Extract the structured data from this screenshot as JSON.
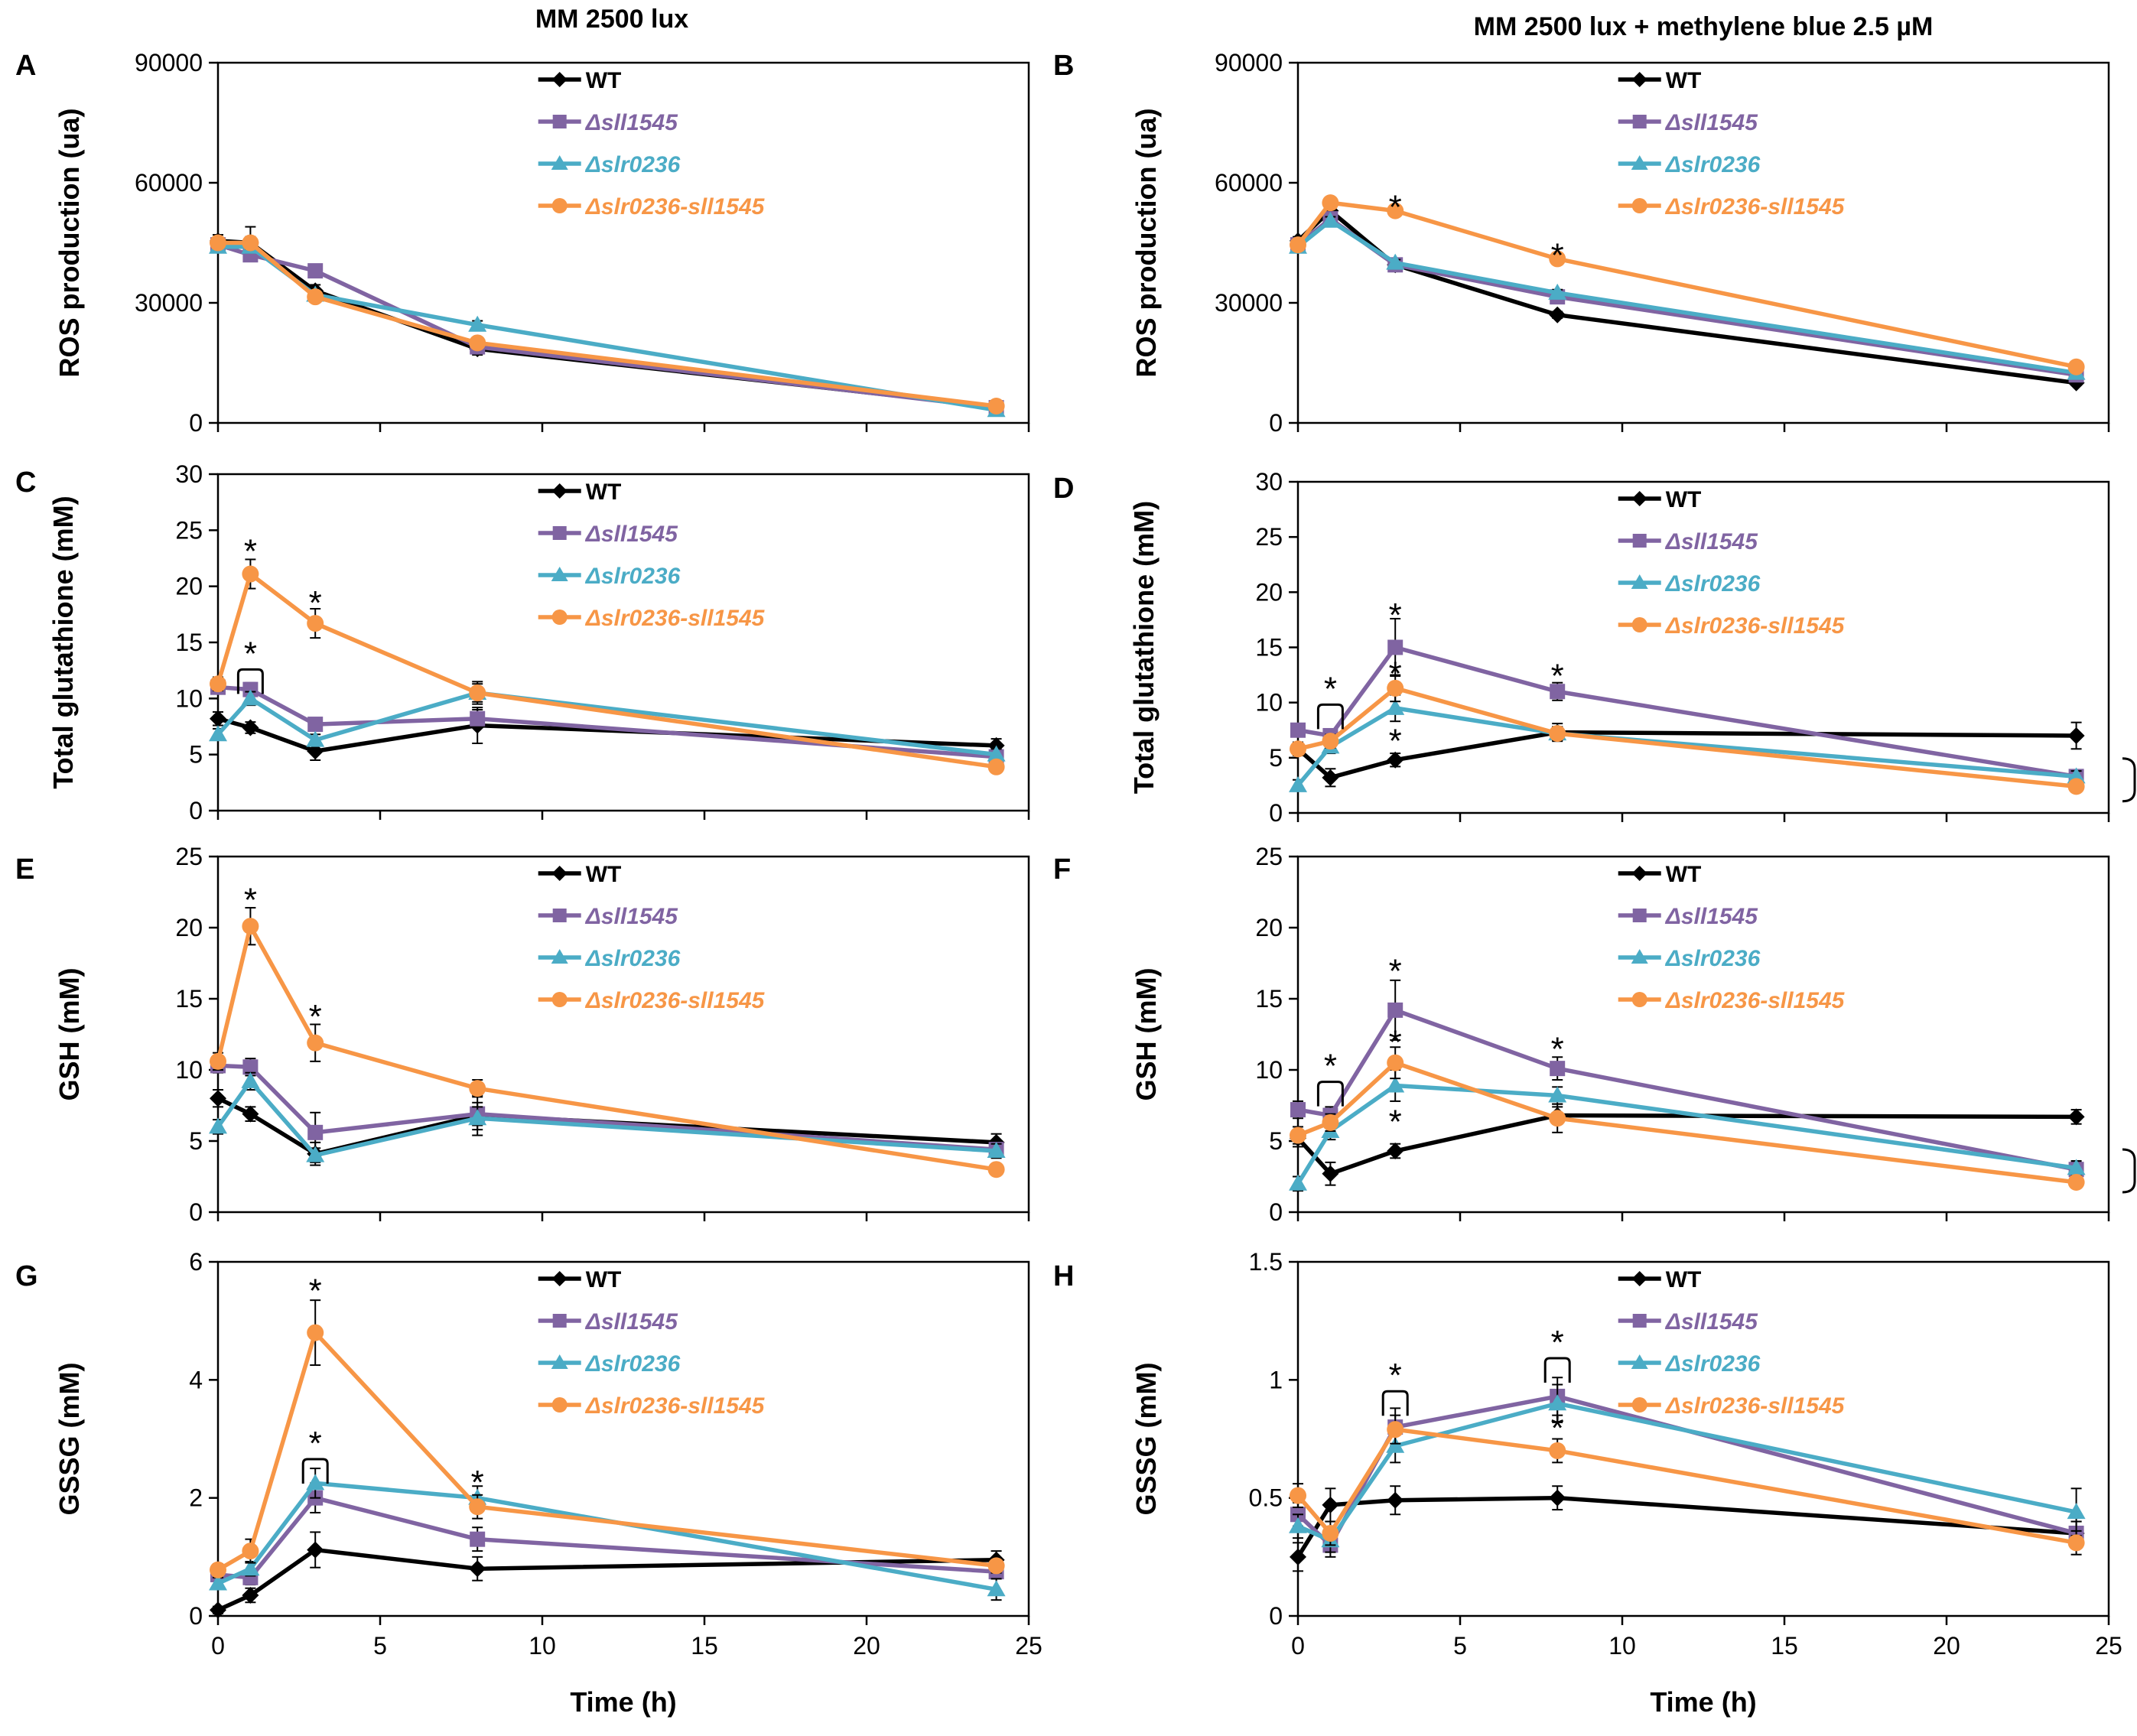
{
  "figure": {
    "col_titles": [
      "MM 2500 lux",
      "MM 2500 lux + methylene blue 2.5 µM"
    ],
    "xlabel": "Time (h)"
  },
  "chart_data": [
    {
      "type": "line",
      "panel": "A",
      "title": "",
      "xlabel": "",
      "ylabel": "ROS production (ua)",
      "xlim": [
        0,
        25
      ],
      "ylim": [
        0,
        90000
      ],
      "yticks": [
        "0",
        "30000",
        "60000",
        "90000"
      ],
      "xticks": [
        0,
        5,
        10,
        15,
        20,
        25
      ],
      "series": [
        {
          "name": "WT",
          "x": [
            0,
            1,
            3,
            8,
            24
          ],
          "values": [
            45500,
            45000,
            33000,
            18500,
            4000
          ],
          "err": [
            1500,
            4000,
            1500,
            1500,
            500
          ]
        },
        {
          "name": "Δsll1545",
          "x": [
            0,
            1,
            3,
            8,
            24
          ],
          "values": [
            44500,
            42000,
            38000,
            19000,
            3800
          ],
          "err": [
            1000,
            1500,
            1000,
            1000,
            500
          ]
        },
        {
          "name": "Δslr0236",
          "x": [
            0,
            1,
            3,
            8,
            24
          ],
          "values": [
            44000,
            44000,
            32000,
            24500,
            3200
          ],
          "err": [
            1000,
            1500,
            1000,
            1000,
            500
          ]
        },
        {
          "name": "Δslr0236-sll1545",
          "x": [
            0,
            1,
            3,
            8,
            24
          ],
          "values": [
            45000,
            45000,
            31500,
            20000,
            4200
          ],
          "err": [
            1000,
            1500,
            1000,
            1000,
            500
          ]
        }
      ],
      "annotations": []
    },
    {
      "type": "line",
      "panel": "B",
      "title": "",
      "xlabel": "",
      "ylabel": "ROS production (ua)",
      "xlim": [
        0,
        25
      ],
      "ylim": [
        0,
        90000
      ],
      "yticks": [
        "0",
        "30000",
        "60000",
        "90000"
      ],
      "xticks": [
        0,
        5,
        10,
        15,
        20,
        25
      ],
      "series": [
        {
          "name": "WT",
          "x": [
            0,
            1,
            3,
            8,
            24
          ],
          "values": [
            45500,
            53000,
            39500,
            27000,
            10000
          ],
          "err": [
            1000,
            1000,
            800,
            800,
            600
          ]
        },
        {
          "name": "Δsll1545",
          "x": [
            0,
            1,
            3,
            8,
            24
          ],
          "values": [
            44500,
            51000,
            39500,
            31500,
            12000
          ],
          "err": [
            1000,
            1000,
            800,
            800,
            600
          ]
        },
        {
          "name": "Δslr0236",
          "x": [
            0,
            1,
            3,
            8,
            24
          ],
          "values": [
            44000,
            50500,
            40000,
            32500,
            12500
          ],
          "err": [
            1000,
            1000,
            800,
            800,
            600
          ]
        },
        {
          "name": "Δslr0236-sll1545",
          "x": [
            0,
            1,
            3,
            8,
            24
          ],
          "values": [
            44500,
            55000,
            53000,
            41000,
            14000
          ],
          "err": [
            1000,
            1000,
            800,
            800,
            600
          ]
        }
      ],
      "annotations": [
        {
          "text": "*",
          "x": 3,
          "y": 53000
        },
        {
          "text": "*",
          "x": 8,
          "y": 41000
        }
      ]
    },
    {
      "type": "line",
      "panel": "C",
      "title": "",
      "xlabel": "",
      "ylabel": "Total glutathione (mM)",
      "xlim": [
        0,
        25
      ],
      "ylim": [
        0,
        30
      ],
      "yticks": [
        "0",
        "5",
        "10",
        "15",
        "20",
        "25",
        "30"
      ],
      "xticks": [
        0,
        5,
        10,
        15,
        20,
        25
      ],
      "series": [
        {
          "name": "WT",
          "x": [
            0,
            1,
            3,
            8,
            24
          ],
          "values": [
            8.2,
            7.4,
            5.3,
            7.6,
            5.8
          ],
          "err": [
            0.6,
            0.5,
            0.8,
            1.6,
            0.6
          ]
        },
        {
          "name": "Δsll1545",
          "x": [
            0,
            1,
            3,
            8,
            24
          ],
          "values": [
            11.0,
            10.8,
            7.7,
            8.2,
            4.8
          ],
          "err": [
            0.5,
            0.6,
            0.5,
            0.8,
            0.5
          ]
        },
        {
          "name": "Δslr0236",
          "x": [
            0,
            1,
            3,
            8,
            24
          ],
          "values": [
            6.8,
            10.0,
            6.3,
            10.5,
            5.0
          ],
          "err": [
            0.5,
            0.6,
            0.5,
            1.0,
            0.5
          ]
        },
        {
          "name": "Δslr0236-sll1545",
          "x": [
            0,
            1,
            3,
            8,
            24
          ],
          "values": [
            11.3,
            21.1,
            16.7,
            10.5,
            3.9
          ],
          "err": [
            0.6,
            1.3,
            1.3,
            0.8,
            0.5
          ]
        }
      ],
      "annotations": [
        {
          "text": "*",
          "x": 1,
          "y": 22.8
        },
        {
          "text": "*",
          "x": 3,
          "y": 18.2
        },
        {
          "text": "*",
          "x": 1,
          "y": 11.5,
          "bracket": true
        }
      ]
    },
    {
      "type": "line",
      "panel": "D",
      "title": "",
      "xlabel": "",
      "ylabel": "Total glutathione (mM)",
      "xlim": [
        0,
        25
      ],
      "ylim": [
        0,
        30
      ],
      "yticks": [
        "0",
        "5",
        "10",
        "15",
        "20",
        "25",
        "30"
      ],
      "xticks": [
        0,
        5,
        10,
        15,
        20,
        25
      ],
      "series": [
        {
          "name": "WT",
          "x": [
            0,
            1,
            3,
            8,
            24
          ],
          "values": [
            5.8,
            3.2,
            4.8,
            7.3,
            7.0
          ],
          "err": [
            0.6,
            0.8,
            0.6,
            0.8,
            1.2
          ]
        },
        {
          "name": "Δsll1545",
          "x": [
            0,
            1,
            3,
            8,
            24
          ],
          "values": [
            7.5,
            7.0,
            15.0,
            11.0,
            3.3
          ],
          "err": [
            0.6,
            0.6,
            2.6,
            0.8,
            0.5
          ]
        },
        {
          "name": "Δslr0236",
          "x": [
            0,
            1,
            3,
            8,
            24
          ],
          "values": [
            2.5,
            6.0,
            9.5,
            7.2,
            3.3
          ],
          "err": [
            0.5,
            0.6,
            1.2,
            0.6,
            0.5
          ]
        },
        {
          "name": "Δslr0236-sll1545",
          "x": [
            0,
            1,
            3,
            8,
            24
          ],
          "values": [
            5.8,
            6.5,
            11.3,
            7.2,
            2.4
          ],
          "err": [
            0.6,
            0.6,
            1.2,
            0.6,
            0.5
          ]
        }
      ],
      "annotations": [
        {
          "text": "*",
          "x": 1,
          "y": 8.7,
          "bracket": true
        },
        {
          "text": "*",
          "x": 3,
          "y": 17.6
        },
        {
          "text": "*",
          "x": 3,
          "y": 12.3
        },
        {
          "text": "*",
          "x": 3,
          "y": 6.2
        },
        {
          "text": "*",
          "x": 8,
          "y": 12.1
        },
        {
          "text": "*",
          "x": 24,
          "y": 3.0,
          "right_bracket": true
        }
      ]
    },
    {
      "type": "line",
      "panel": "E",
      "title": "",
      "xlabel": "",
      "ylabel": "GSH (mM)",
      "xlim": [
        0,
        25
      ],
      "ylim": [
        0,
        25
      ],
      "yticks": [
        "0",
        "5",
        "10",
        "15",
        "20",
        "25"
      ],
      "xticks": [
        0,
        5,
        10,
        15,
        20,
        25
      ],
      "series": [
        {
          "name": "WT",
          "x": [
            0,
            1,
            3,
            8,
            24
          ],
          "values": [
            8.0,
            6.9,
            4.1,
            6.8,
            4.9
          ],
          "err": [
            0.6,
            0.5,
            0.8,
            1.4,
            0.6
          ]
        },
        {
          "name": "Δsll1545",
          "x": [
            0,
            1,
            3,
            8,
            24
          ],
          "values": [
            10.3,
            10.2,
            5.6,
            6.9,
            4.4
          ],
          "err": [
            0.5,
            0.6,
            1.4,
            0.8,
            0.5
          ]
        },
        {
          "name": "Δslr0236",
          "x": [
            0,
            1,
            3,
            8,
            24
          ],
          "values": [
            6.0,
            9.2,
            4.0,
            6.6,
            4.3
          ],
          "err": [
            0.5,
            0.6,
            0.5,
            0.8,
            0.5
          ]
        },
        {
          "name": "Δslr0236-sll1545",
          "x": [
            0,
            1,
            3,
            8,
            24
          ],
          "values": [
            10.6,
            20.1,
            11.9,
            8.7,
            3.0
          ],
          "err": [
            0.6,
            1.3,
            1.3,
            0.6,
            0.3
          ]
        }
      ],
      "annotations": [
        {
          "text": "*",
          "x": 1,
          "y": 21.7
        },
        {
          "text": "*",
          "x": 3,
          "y": 13.5
        }
      ]
    },
    {
      "type": "line",
      "panel": "F",
      "title": "",
      "xlabel": "",
      "ylabel": "GSH (mM)",
      "xlim": [
        0,
        25
      ],
      "ylim": [
        0,
        25
      ],
      "yticks": [
        "0",
        "5",
        "10",
        "15",
        "20",
        "25"
      ],
      "xticks": [
        0,
        5,
        10,
        15,
        20,
        25
      ],
      "series": [
        {
          "name": "WT",
          "x": [
            0,
            1,
            3,
            8,
            24
          ],
          "values": [
            5.2,
            2.7,
            4.3,
            6.8,
            6.7
          ],
          "err": [
            0.6,
            0.8,
            0.5,
            0.6,
            0.5
          ]
        },
        {
          "name": "Δsll1545",
          "x": [
            0,
            1,
            3,
            8,
            24
          ],
          "values": [
            7.2,
            6.8,
            14.2,
            10.1,
            3.0
          ],
          "err": [
            0.6,
            0.6,
            2.1,
            0.8,
            0.5
          ]
        },
        {
          "name": "Δslr0236",
          "x": [
            0,
            1,
            3,
            8,
            24
          ],
          "values": [
            2.0,
            5.7,
            8.9,
            8.2,
            3.1
          ],
          "err": [
            0.5,
            0.6,
            1.1,
            0.6,
            0.5
          ]
        },
        {
          "name": "Δslr0236-sll1545",
          "x": [
            0,
            1,
            3,
            8,
            24
          ],
          "values": [
            5.4,
            6.3,
            10.5,
            6.6,
            2.1
          ],
          "err": [
            0.6,
            0.6,
            1.1,
            1.0,
            0.4
          ]
        }
      ],
      "annotations": [
        {
          "text": "*",
          "x": 1,
          "y": 8.3,
          "bracket": true
        },
        {
          "text": "*",
          "x": 3,
          "y": 16.7
        },
        {
          "text": "*",
          "x": 3,
          "y": 11.7
        },
        {
          "text": "*",
          "x": 3,
          "y": 6.1
        },
        {
          "text": "*",
          "x": 8,
          "y": 11.2
        },
        {
          "text": "*",
          "x": 24,
          "y": 2.9,
          "right_bracket": true
        }
      ]
    },
    {
      "type": "line",
      "panel": "G",
      "title": "",
      "xlabel": "Time (h)",
      "ylabel": "GSSG (mM)",
      "xlim": [
        0,
        25
      ],
      "ylim": [
        0,
        6
      ],
      "yticks": [
        "0",
        "2",
        "4",
        "6"
      ],
      "xticks": [
        0,
        5,
        10,
        15,
        20,
        25
      ],
      "series": [
        {
          "name": "WT",
          "x": [
            0,
            1,
            3,
            8,
            24
          ],
          "values": [
            0.1,
            0.35,
            1.12,
            0.8,
            0.95
          ],
          "err": [
            0.06,
            0.12,
            0.3,
            0.2,
            0.15
          ]
        },
        {
          "name": "Δsll1545",
          "x": [
            0,
            1,
            3,
            8,
            24
          ],
          "values": [
            0.7,
            0.65,
            2.0,
            1.3,
            0.75
          ],
          "err": [
            0.1,
            0.12,
            0.25,
            0.2,
            0.12
          ]
        },
        {
          "name": "Δslr0236",
          "x": [
            0,
            1,
            3,
            8,
            24
          ],
          "values": [
            0.55,
            0.8,
            2.25,
            2.0,
            0.45
          ],
          "err": [
            0.1,
            0.12,
            0.25,
            0.2,
            0.18
          ]
        },
        {
          "name": "Δslr0236-sll1545",
          "x": [
            0,
            1,
            3,
            8,
            24
          ],
          "values": [
            0.78,
            1.1,
            4.8,
            1.85,
            0.85
          ],
          "err": [
            0.1,
            0.2,
            0.55,
            0.2,
            0.12
          ]
        }
      ],
      "annotations": [
        {
          "text": "*",
          "x": 3,
          "y": 5.45
        },
        {
          "text": "*",
          "x": 3,
          "y": 2.45,
          "bracket": true
        },
        {
          "text": "*",
          "x": 8,
          "y": 2.2
        }
      ]
    },
    {
      "type": "line",
      "panel": "H",
      "title": "",
      "xlabel": "Time (h)",
      "ylabel": "GSSG (mM)",
      "xlim": [
        0,
        25
      ],
      "ylim": [
        0,
        1.5
      ],
      "yticks": [
        "0",
        "0.5",
        "1",
        "1.5"
      ],
      "xticks": [
        0,
        5,
        10,
        15,
        20,
        25
      ],
      "series": [
        {
          "name": "WT",
          "x": [
            0,
            1,
            3,
            8,
            24
          ],
          "values": [
            0.25,
            0.47,
            0.49,
            0.5,
            0.35
          ],
          "err": [
            0.06,
            0.07,
            0.06,
            0.05,
            0.05
          ]
        },
        {
          "name": "Δsll1545",
          "x": [
            0,
            1,
            3,
            8,
            24
          ],
          "values": [
            0.43,
            0.3,
            0.8,
            0.93,
            0.35
          ],
          "err": [
            0.05,
            0.05,
            0.08,
            0.08,
            0.05
          ]
        },
        {
          "name": "Δslr0236",
          "x": [
            0,
            1,
            3,
            8,
            24
          ],
          "values": [
            0.38,
            0.32,
            0.72,
            0.9,
            0.44
          ],
          "err": [
            0.05,
            0.05,
            0.07,
            0.08,
            0.1
          ]
        },
        {
          "name": "Δslr0236-sll1545",
          "x": [
            0,
            1,
            3,
            8,
            24
          ],
          "values": [
            0.51,
            0.35,
            0.79,
            0.7,
            0.31
          ],
          "err": [
            0.05,
            0.05,
            0.06,
            0.05,
            0.05
          ]
        }
      ],
      "annotations": [
        {
          "text": "*",
          "x": 3,
          "y": 0.9,
          "bracket": true
        },
        {
          "text": "*",
          "x": 8,
          "y": 1.04,
          "bracket": true
        },
        {
          "text": "*",
          "x": 8,
          "y": 0.78
        }
      ]
    }
  ],
  "styles": {
    "series_colors": {
      "WT": "#000000",
      "Δsll1545": "#8064a2",
      "Δslr0236": "#4bacc6",
      "Δslr0236-sll1545": "#f79646"
    },
    "series_markers": {
      "WT": "diamond",
      "Δsll1545": "square",
      "Δslr0236": "triangle",
      "Δslr0236-sll1545": "circle"
    }
  }
}
